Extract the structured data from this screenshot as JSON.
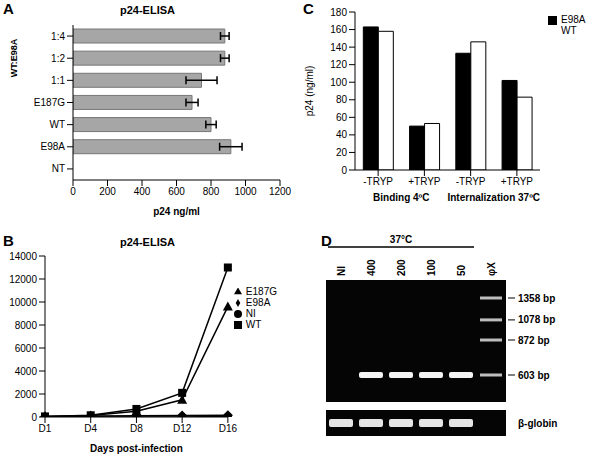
{
  "chart_data": [
    {
      "panel": "A",
      "type": "bar",
      "orientation": "horizontal",
      "title": "p24-ELISA",
      "xlabel": "p24 ng/ml",
      "categories": [
        "1:4",
        "1:2",
        "1:1",
        "E187G",
        "WT",
        "E98A",
        "NT"
      ],
      "values": [
        880,
        880,
        745,
        690,
        800,
        915,
        0
      ],
      "errors": [
        25,
        25,
        90,
        35,
        30,
        65,
        null
      ],
      "color": "#a6a6a6",
      "xlim": [
        0,
        1200
      ],
      "xticks": [
        0,
        200,
        400,
        600,
        800,
        1000,
        1200
      ],
      "annotations": [
        "WT:E98A"
      ]
    },
    {
      "panel": "C",
      "type": "bar",
      "ylabel": "p24 (ng/ml)",
      "categories": [
        "-TRYP",
        "+TRYP",
        "-TRYP",
        "+TRYP"
      ],
      "series": [
        {
          "name": "E98A",
          "color": "#000000",
          "values": [
            163,
            50,
            133,
            102
          ]
        },
        {
          "name": "WT",
          "color": "#ffffff",
          "values": [
            158,
            53,
            146,
            83
          ]
        }
      ],
      "ylim": [
        0,
        180
      ],
      "yticks": [
        0,
        20,
        40,
        60,
        80,
        100,
        120,
        140,
        160,
        180
      ],
      "legend": "right",
      "annotations": [
        "Binding 4ºC",
        "Internalization 37ºC"
      ]
    },
    {
      "panel": "B",
      "type": "line",
      "title": "p24-ELISA",
      "xlabel": "Days post-infection",
      "categories": [
        "D1",
        "D4",
        "D8",
        "D12",
        "D16"
      ],
      "series": [
        {
          "name": "E98A",
          "color": "#000000",
          "marker": "diamond",
          "values": [
            50,
            80,
            100,
            120,
            150
          ]
        },
        {
          "name": "WT",
          "color": "#000000",
          "marker": "square",
          "values": [
            50,
            150,
            700,
            2100,
            13000
          ]
        },
        {
          "name": "E187G",
          "color": "#000000",
          "marker": "triangle",
          "values": [
            50,
            120,
            500,
            1500,
            9600
          ]
        },
        {
          "name": "NI",
          "color": "#000000",
          "marker": "circle",
          "values": [
            0,
            0,
            0,
            0,
            50
          ]
        }
      ],
      "ylim": [
        0,
        14000
      ],
      "yticks": [
        0,
        2000,
        4000,
        6000,
        8000,
        10000,
        12000,
        14000
      ],
      "legend": "right"
    },
    {
      "panel": "D",
      "type": "gel",
      "title": "37°C",
      "categories": [
        "NI",
        "400",
        "200",
        "100",
        "50",
        "φX"
      ],
      "values": [
        null,
        603,
        603,
        603,
        603,
        null
      ],
      "yticks": [
        {
          "value": 1358,
          "label": "1358 bp"
        },
        {
          "value": 1078,
          "label": "1078 bp"
        },
        {
          "value": 872,
          "label": "872 bp"
        },
        {
          "value": 603,
          "label": "603 bp"
        }
      ],
      "control_label": "β-globin",
      "control": [
        true,
        true,
        true,
        true,
        true,
        false
      ]
    }
  ]
}
